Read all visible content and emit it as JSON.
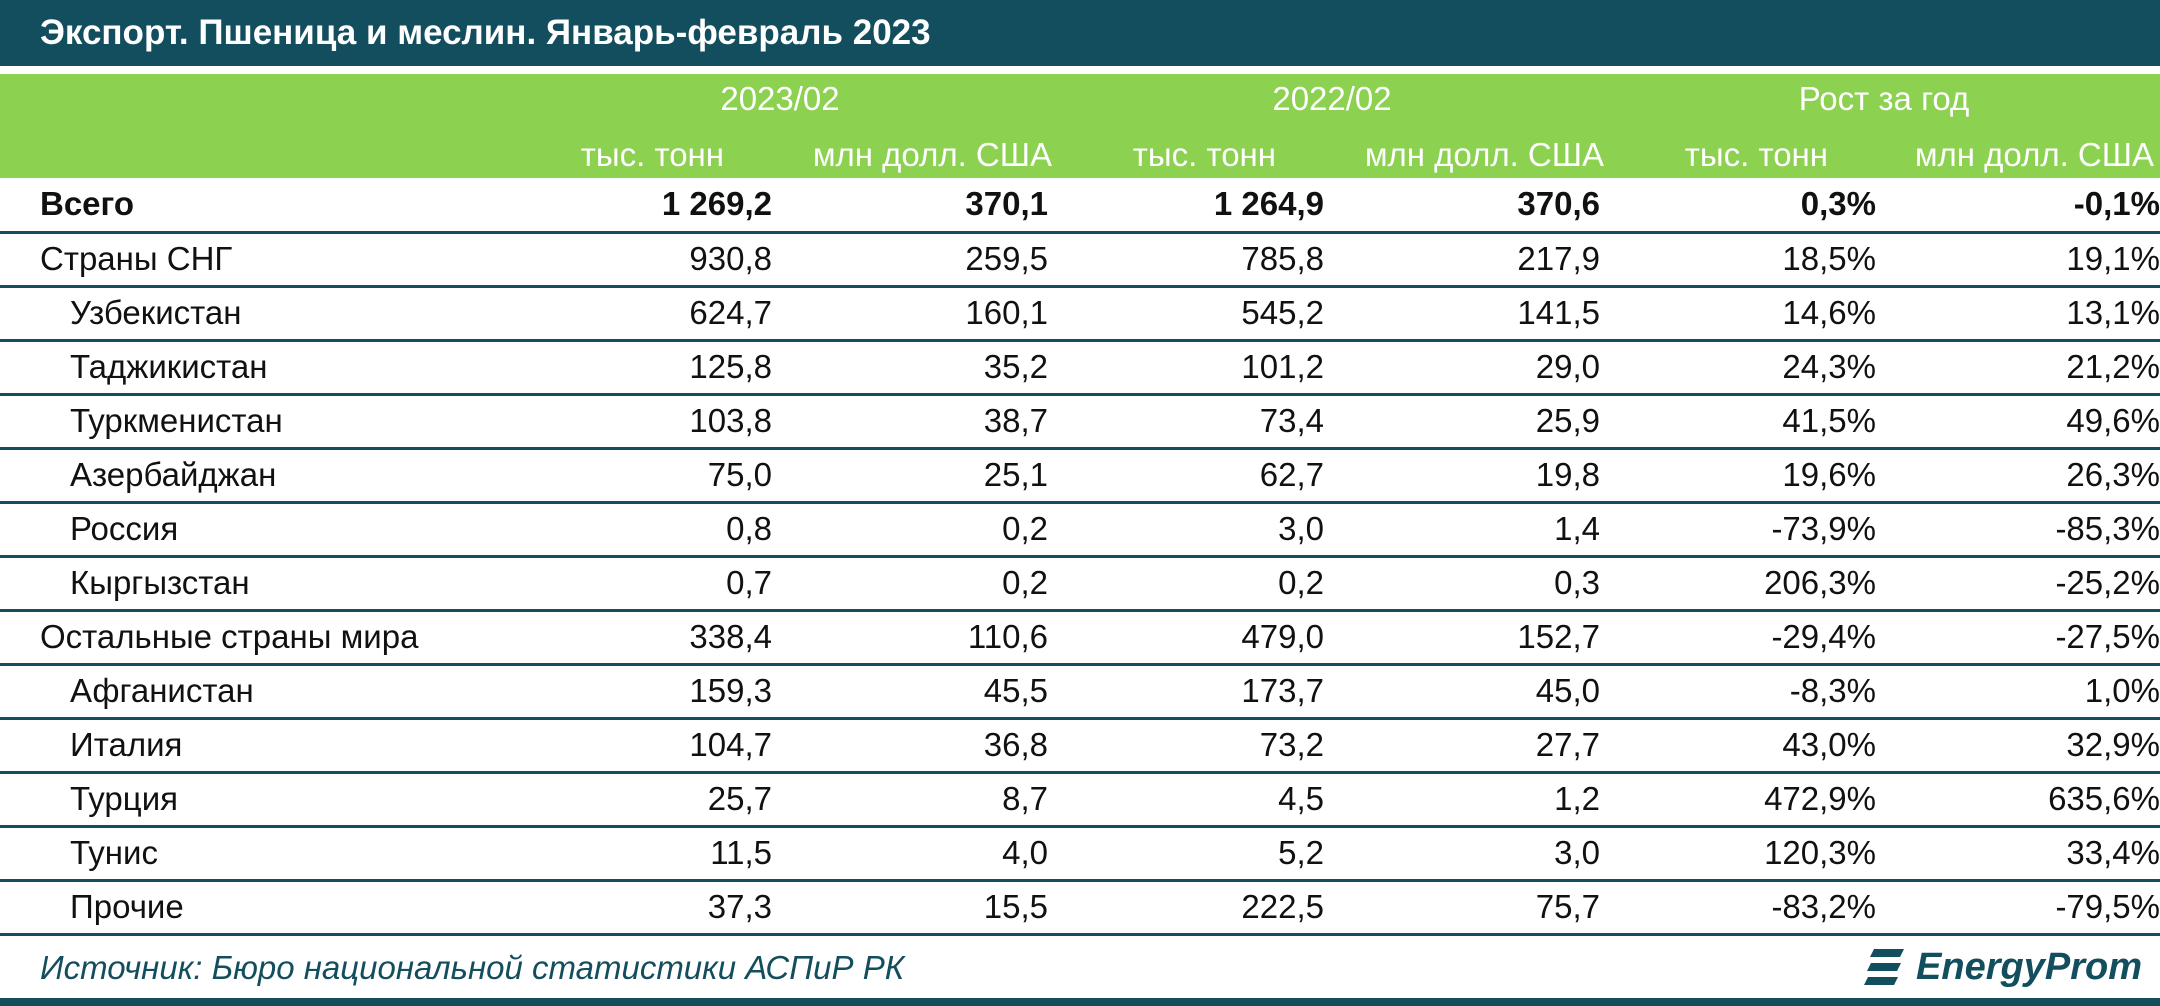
{
  "title": "Экспорт. Пшеница и меслин. Январь-февраль 2023",
  "colors": {
    "dark": "#134e5e",
    "green": "#8cd150"
  },
  "header": {
    "groups": [
      "2023/02",
      "2022/02",
      "Рост за год"
    ],
    "units": [
      "тыс. тонн",
      "млн долл. США",
      "тыс. тонн",
      "млн долл. США",
      "тыс. тонн",
      "млн долл. США"
    ]
  },
  "chart_data": {
    "type": "table",
    "columns": [
      "2023/02 тыс. тонн",
      "2023/02 млн долл. США",
      "2022/02 тыс. тонн",
      "2022/02 млн долл. США",
      "Рост за год тыс. тонн",
      "Рост за год млн долл. США"
    ],
    "rows": [
      {
        "name": "Всего",
        "values": [
          "1 269,2",
          "370,1",
          "1 264,9",
          "370,6",
          "0,3%",
          "-0,1%"
        ]
      },
      {
        "name": "Страны СНГ",
        "values": [
          "930,8",
          "259,5",
          "785,8",
          "217,9",
          "18,5%",
          "19,1%"
        ]
      },
      {
        "name": "Узбекистан",
        "values": [
          "624,7",
          "160,1",
          "545,2",
          "141,5",
          "14,6%",
          "13,1%"
        ]
      },
      {
        "name": "Таджикистан",
        "values": [
          "125,8",
          "35,2",
          "101,2",
          "29,0",
          "24,3%",
          "21,2%"
        ]
      },
      {
        "name": "Туркменистан",
        "values": [
          "103,8",
          "38,7",
          "73,4",
          "25,9",
          "41,5%",
          "49,6%"
        ]
      },
      {
        "name": "Азербайджан",
        "values": [
          "75,0",
          "25,1",
          "62,7",
          "19,8",
          "19,6%",
          "26,3%"
        ]
      },
      {
        "name": "Россия",
        "values": [
          "0,8",
          "0,2",
          "3,0",
          "1,4",
          "-73,9%",
          "-85,3%"
        ]
      },
      {
        "name": "Кыргызстан",
        "values": [
          "0,7",
          "0,2",
          "0,2",
          "0,3",
          "206,3%",
          "-25,2%"
        ]
      },
      {
        "name": "Остальные страны мира",
        "values": [
          "338,4",
          "110,6",
          "479,0",
          "152,7",
          "-29,4%",
          "-27,5%"
        ]
      },
      {
        "name": "Афганистан",
        "values": [
          "159,3",
          "45,5",
          "173,7",
          "45,0",
          "-8,3%",
          "1,0%"
        ]
      },
      {
        "name": "Италия",
        "values": [
          "104,7",
          "36,8",
          "73,2",
          "27,7",
          "43,0%",
          "32,9%"
        ]
      },
      {
        "name": "Турция",
        "values": [
          "25,7",
          "8,7",
          "4,5",
          "1,2",
          "472,9%",
          "635,6%"
        ]
      },
      {
        "name": "Тунис",
        "values": [
          "11,5",
          "4,0",
          "5,2",
          "3,0",
          "120,3%",
          "33,4%"
        ]
      },
      {
        "name": "Прочие",
        "values": [
          "37,3",
          "15,5",
          "222,5",
          "75,7",
          "-83,2%",
          "-79,5%"
        ]
      }
    ]
  },
  "footer": {
    "source": "Источник: Бюро национальной статистики АСПиР РК",
    "logo_text": "EnergyProm",
    "logo_icon": "energyprom-logo-icon"
  }
}
